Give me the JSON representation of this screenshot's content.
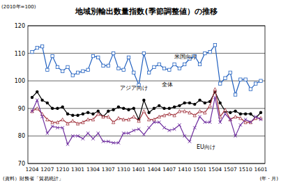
{
  "chart_data": {
    "type": "line",
    "title": "地域別輸出数量指数(季節調整値）の推移",
    "y_label": "(2010年=100)",
    "x_label": "(年・月)",
    "source": "(資料）財務省「貿易統計」",
    "categories": [
      "1204",
      null,
      null,
      "1207",
      null,
      null,
      "1210",
      null,
      null,
      "1301",
      null,
      null,
      "1304",
      null,
      null,
      "1307",
      null,
      null,
      "1310",
      null,
      null,
      "1401",
      null,
      null,
      "1404",
      null,
      null,
      "1407",
      null,
      null,
      "1410",
      null,
      null,
      "1501",
      null,
      null,
      "1504",
      null,
      null,
      "1507",
      null,
      null,
      "1510",
      null,
      null,
      "1601"
    ],
    "ylim": [
      70,
      120
    ],
    "yticks": [
      70,
      80,
      90,
      100,
      110,
      120
    ],
    "grid": true,
    "series": [
      {
        "name": "米国向け",
        "color": "#1f5fbf",
        "marker": "square",
        "values": [
          110.5,
          112,
          112.5,
          104,
          109,
          105,
          103.5,
          105,
          102,
          103,
          103.5,
          104,
          109,
          108.5,
          105.5,
          105.5,
          110,
          104.5,
          104,
          108.5,
          103,
          98.5,
          110,
          103,
          105,
          106,
          104.5,
          104,
          106,
          104.5,
          106,
          108,
          109,
          106,
          110,
          110.5,
          113,
          99,
          101,
          103,
          95,
          100.5,
          100.5,
          97,
          99,
          100
        ]
      },
      {
        "name": "全体",
        "color": "#000000",
        "marker": "circle",
        "values": [
          94,
          96,
          93,
          92,
          90,
          90,
          90.5,
          88,
          87.5,
          87.5,
          88,
          88.5,
          88,
          89,
          87,
          89,
          89.5,
          90.5,
          90,
          89.5,
          90,
          86,
          93,
          88.5,
          90,
          91,
          90,
          90,
          90.5,
          91,
          92,
          92,
          91.5,
          93,
          92,
          92.5,
          96,
          92,
          89,
          88.5,
          89,
          88,
          88,
          88,
          86.5,
          88.5
        ]
      },
      {
        "name": "アジア向け",
        "color": "#a0303a",
        "marker": "triangle",
        "values": [
          89,
          90,
          88,
          86,
          85,
          85,
          86,
          84.5,
          85.5,
          84.5,
          85,
          86,
          86,
          88,
          87,
          87,
          85,
          86.5,
          86,
          86,
          87,
          85.5,
          89,
          86,
          86,
          87,
          87.5,
          88,
          87.5,
          89,
          89,
          88.5,
          87.5,
          89,
          88.5,
          91,
          97,
          87,
          89.5,
          86,
          87,
          86.5,
          85,
          85,
          86.5,
          86.5
        ]
      },
      {
        "name": "EU向け",
        "color": "#7030a0",
        "marker": "x",
        "values": [
          89,
          93,
          87,
          81,
          83.5,
          83,
          83,
          77,
          80,
          80,
          79,
          81,
          79,
          81,
          78,
          78,
          77.5,
          77.5,
          81,
          81,
          82,
          82.5,
          80.5,
          83,
          85,
          85,
          83,
          82,
          82.5,
          84,
          80,
          78,
          83,
          87,
          85,
          85,
          94,
          85,
          88,
          86,
          80,
          84,
          86,
          85,
          87,
          86
        ]
      }
    ]
  }
}
